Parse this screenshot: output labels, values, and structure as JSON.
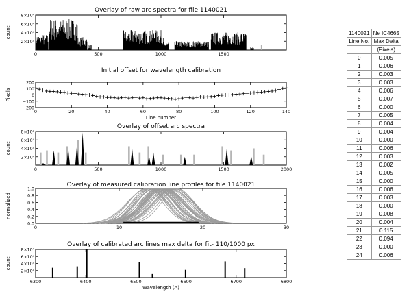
{
  "chart_data": [
    {
      "type": "bar",
      "title": "Overlay of raw arc spectra for file 1140021",
      "ylabel": "count",
      "xlim": [
        0,
        2000
      ],
      "ylim": [
        0,
        80000
      ],
      "xticks": [
        "0",
        "500",
        "1000",
        "1500"
      ],
      "yticks": [
        "2×10⁴",
        "4×10⁴",
        "6×10⁴",
        "8×10⁴"
      ],
      "segments": [
        {
          "x0": 0,
          "x1": 100,
          "level": 30000
        },
        {
          "x0": 105,
          "x1": 335,
          "level": 60000
        },
        {
          "x0": 335,
          "x1": 410,
          "level": 25000
        },
        {
          "x0": 420,
          "x1": 445,
          "level": 10000
        },
        {
          "x0": 700,
          "x1": 1020,
          "level": 38000
        },
        {
          "x0": 1000,
          "x1": 1060,
          "level": 15000
        },
        {
          "x0": 1110,
          "x1": 1380,
          "level": 17000
        },
        {
          "x0": 1400,
          "x1": 1680,
          "level": 34000
        },
        {
          "x0": 1715,
          "x1": 1740,
          "level": 5000
        }
      ],
      "gray_lines": [
        1000,
        1145,
        1340,
        1800
      ]
    },
    {
      "type": "scatter",
      "title": "Initial offset for wavelength calibration",
      "xlabel": "Line number",
      "ylabel": "Pixels",
      "xlim": [
        0,
        140
      ],
      "ylim": [
        -200,
        200
      ],
      "xticks": [
        "0",
        "20",
        "40",
        "60",
        "80",
        "100",
        "120",
        "140"
      ],
      "yticks": [
        "−200",
        "−100",
        "0",
        "100",
        "200"
      ],
      "x": [
        0,
        2,
        4,
        6,
        8,
        10,
        12,
        14,
        16,
        18,
        20,
        22,
        24,
        26,
        28,
        30,
        32,
        34,
        36,
        38,
        40,
        42,
        44,
        46,
        48,
        50,
        52,
        54,
        56,
        58,
        60,
        62,
        64,
        66,
        68,
        70,
        72,
        74,
        76,
        78,
        80,
        82,
        84,
        86,
        88,
        90,
        92,
        94,
        96,
        98,
        100,
        102,
        104,
        106,
        108,
        110,
        112,
        114,
        116,
        118,
        120,
        122,
        124,
        126,
        128,
        130,
        132,
        134,
        136,
        138,
        140
      ],
      "y": [
        110,
        90,
        75,
        60,
        55,
        55,
        50,
        45,
        40,
        30,
        25,
        20,
        15,
        10,
        5,
        0,
        -10,
        -20,
        -30,
        -30,
        -40,
        -40,
        -45,
        -50,
        -45,
        -40,
        -50,
        -45,
        -40,
        -50,
        -45,
        -60,
        -55,
        -50,
        -45,
        -45,
        -50,
        -55,
        -60,
        -70,
        -60,
        -50,
        -40,
        -45,
        -50,
        -40,
        -30,
        -35,
        -30,
        -25,
        -20,
        -10,
        -5,
        0,
        0,
        5,
        10,
        15,
        20,
        25,
        30,
        35,
        40,
        45,
        50,
        55,
        60,
        70,
        85,
        100,
        110
      ]
    },
    {
      "type": "bar",
      "title": "Overlay of offset arc spectra",
      "ylabel": "count",
      "xlim": [
        0,
        2000
      ],
      "ylim": [
        0,
        80000
      ],
      "xticks": [
        "0",
        "500",
        "1000",
        "1500",
        "2000"
      ],
      "yticks": [
        "2×10⁴",
        "4×10⁴",
        "6×10⁴",
        "8×10⁴"
      ],
      "peaks_black": [
        {
          "x": 60,
          "h": 5000
        },
        {
          "x": 145,
          "h": 35000
        },
        {
          "x": 260,
          "h": 40000
        },
        {
          "x": 330,
          "h": 50000
        },
        {
          "x": 375,
          "h": 78000
        },
        {
          "x": 770,
          "h": 40000
        },
        {
          "x": 905,
          "h": 22000
        },
        {
          "x": 940,
          "h": 30000
        },
        {
          "x": 1190,
          "h": 20000
        },
        {
          "x": 1525,
          "h": 40000
        },
        {
          "x": 1720,
          "h": 22000
        }
      ],
      "peaks_gray": [
        {
          "x": 40,
          "h": 30000
        },
        {
          "x": 90,
          "h": 35000
        },
        {
          "x": 180,
          "h": 30000
        },
        {
          "x": 250,
          "h": 45000
        },
        {
          "x": 340,
          "h": 60000
        },
        {
          "x": 400,
          "h": 30000
        },
        {
          "x": 745,
          "h": 45000
        },
        {
          "x": 830,
          "h": 30000
        },
        {
          "x": 900,
          "h": 45000
        },
        {
          "x": 1015,
          "h": 25000
        },
        {
          "x": 1160,
          "h": 25000
        },
        {
          "x": 1265,
          "h": 25000
        },
        {
          "x": 1490,
          "h": 45000
        },
        {
          "x": 1560,
          "h": 35000
        },
        {
          "x": 1740,
          "h": 40000
        },
        {
          "x": 1820,
          "h": 25000
        }
      ]
    },
    {
      "type": "line",
      "title": "Overlay of measured calibration line profiles for file 1140021",
      "ylabel": "normalized",
      "xlim": [
        0,
        30
      ],
      "ylim": [
        0,
        1.0
      ],
      "xticks": [
        "0",
        "10",
        "20",
        "30"
      ],
      "yticks": [
        "0.0",
        "0.2",
        "0.4",
        "0.6",
        "0.8",
        "1.0"
      ],
      "profile_center": 15,
      "profile_width": 2.2,
      "profile_spread": 2
    },
    {
      "type": "bar",
      "title": "Overlay of calibrated arc lines      max delta for fit-   110/1000 px",
      "xlabel": "Wavelength (A)",
      "ylabel": "count",
      "xlim": [
        6300,
        6800
      ],
      "ylim": [
        0,
        80000
      ],
      "xticks": [
        "6300",
        "6400",
        "6500",
        "6600",
        "6700",
        "6800"
      ],
      "yticks": [
        "2×10⁴",
        "4×10⁴",
        "6×10⁴",
        "8×10⁴"
      ],
      "lines": [
        {
          "x": 6334,
          "h": 28000
        },
        {
          "x": 6383,
          "h": 32000
        },
        {
          "x": 6402,
          "h": 80000
        },
        {
          "x": 6507,
          "h": 44000
        },
        {
          "x": 6533,
          "h": 10000
        },
        {
          "x": 6599,
          "h": 22000
        },
        {
          "x": 6678,
          "h": 46000
        },
        {
          "x": 6717,
          "h": 27000
        }
      ]
    }
  ],
  "table": {
    "header": [
      "1140021",
      "Ne IC4665"
    ],
    "subheader": [
      "Line No.",
      "Max Delta"
    ],
    "units": "(Pixels)",
    "rows": [
      [
        "0",
        "0.005"
      ],
      [
        "1",
        "0.006"
      ],
      [
        "2",
        "0.003"
      ],
      [
        "3",
        "0.003"
      ],
      [
        "4",
        "0.006"
      ],
      [
        "5",
        "0.007"
      ],
      [
        "6",
        "0.000"
      ],
      [
        "7",
        "0.005"
      ],
      [
        "8",
        "0.004"
      ],
      [
        "9",
        "0.004"
      ],
      [
        "10",
        "0.000"
      ],
      [
        "11",
        "0.006"
      ],
      [
        "12",
        "0.003"
      ],
      [
        "13",
        "0.002"
      ],
      [
        "14",
        "0.005"
      ],
      [
        "15",
        "0.000"
      ],
      [
        "16",
        "0.006"
      ],
      [
        "17",
        "0.003"
      ],
      [
        "18",
        "0.000"
      ],
      [
        "19",
        "0.008"
      ],
      [
        "20",
        "0.004"
      ],
      [
        "21",
        "0.115"
      ],
      [
        "22",
        "0.094"
      ],
      [
        "23",
        "0.000"
      ],
      [
        "24",
        "0.006"
      ]
    ]
  }
}
